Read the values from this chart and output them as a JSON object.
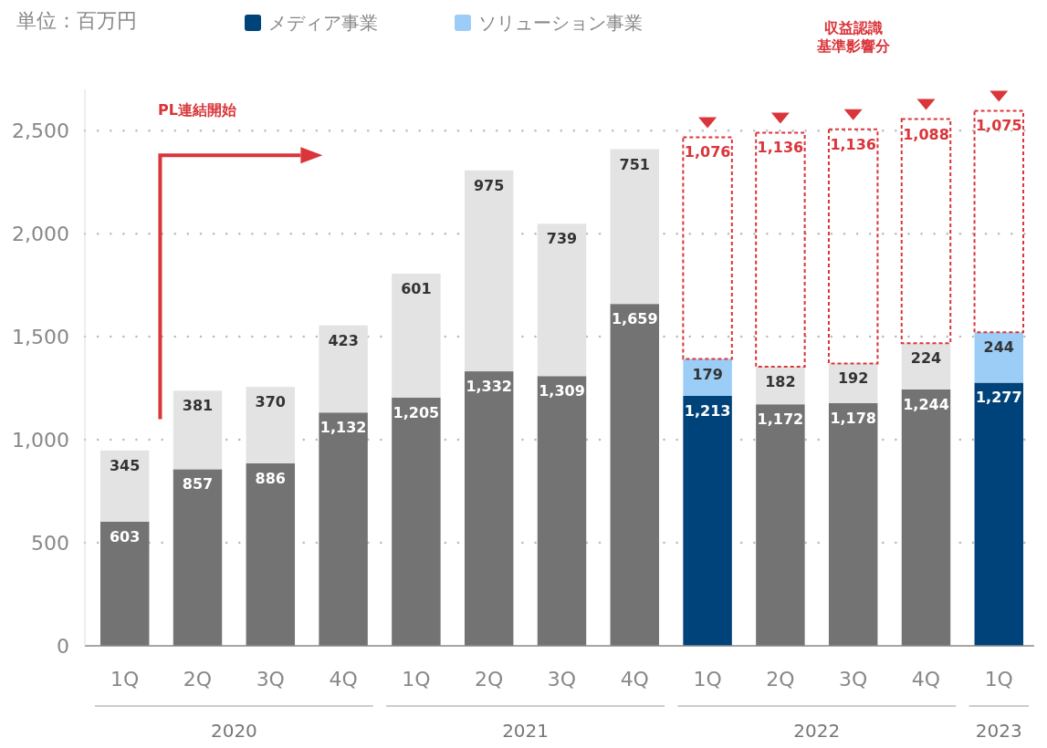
{
  "chart_data": {
    "type": "bar",
    "stacked": true,
    "categories": [
      "1Q",
      "2Q",
      "3Q",
      "4Q",
      "1Q",
      "2Q",
      "3Q",
      "4Q",
      "1Q",
      "2Q",
      "3Q",
      "4Q",
      "1Q"
    ],
    "ylim": [
      0,
      2700
    ],
    "yticks": [
      0,
      500,
      {
        "value": 1000,
        "label": "1,000"
      },
      {
        "value": 1500,
        "label": "1,500"
      },
      {
        "value": 2000,
        "label": "2,000"
      },
      {
        "value": 2500,
        "label": "2,500"
      }
    ],
    "grid": "y",
    "legend": "top",
    "series": [
      {
        "name": "メディア事業",
        "color": "#00437a",
        "colors": [
          "#737373",
          "#737373",
          "#737373",
          "#737373",
          "#737373",
          "#737373",
          "#737373",
          "#737373",
          "#00437a",
          "#737373",
          "#737373",
          "#737373",
          "#00437a"
        ],
        "values": [
          603,
          857,
          886,
          1132,
          1205,
          1332,
          1309,
          1659,
          1213,
          1172,
          1178,
          1244,
          1277
        ],
        "value_labels": [
          "603",
          "857",
          "886",
          "1,132",
          "1,205",
          "1,332",
          "1,309",
          "1,659",
          "1,213",
          "1,172",
          "1,178",
          "1,244",
          "1,277"
        ]
      },
      {
        "name": "ソリューション事業",
        "color": "#9ccdf7",
        "colors": [
          "#e3e3e3",
          "#e3e3e3",
          "#e3e3e3",
          "#e3e3e3",
          "#e3e3e3",
          "#e3e3e3",
          "#e3e3e3",
          "#e3e3e3",
          "#9ccdf7",
          "#e3e3e3",
          "#e3e3e3",
          "#e3e3e3",
          "#9ccdf7"
        ],
        "values": [
          345,
          381,
          370,
          423,
          601,
          975,
          739,
          751,
          179,
          182,
          192,
          224,
          244
        ],
        "value_labels": [
          "345",
          "381",
          "370",
          "423",
          "601",
          "975",
          "739",
          "751",
          "179",
          "182",
          "192",
          "224",
          "244"
        ]
      },
      {
        "color": "#d9353a",
        "line_style": "dashed",
        "values": [
          null,
          null,
          null,
          null,
          null,
          null,
          null,
          null,
          1076,
          1136,
          1136,
          1088,
          1075
        ],
        "value_labels": [
          null,
          null,
          null,
          null,
          null,
          null,
          null,
          null,
          "1,076",
          "1,136",
          "1,136",
          "1,088",
          "1,075"
        ]
      }
    ],
    "annotations": [
      "単位：百万円",
      "PL連結開始",
      "収益認識基準影響分",
      "2020",
      "2021",
      "2022",
      "2023"
    ]
  }
}
